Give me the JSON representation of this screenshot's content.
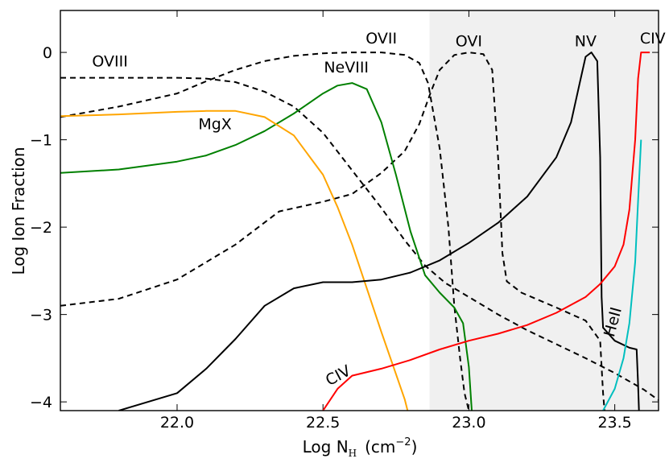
{
  "chart_data": {
    "type": "line",
    "title": "",
    "xlabel": "Log N",
    "xlabel_subscript": "H",
    "xlabel_units": "(cm",
    "xlabel_units_exp": "−2",
    "xlabel_units_close": ")",
    "ylabel": "Log Ion Fraction",
    "xlim": [
      21.6,
      23.65
    ],
    "ylim": [
      -4.1,
      0.48
    ],
    "xticks": [
      22.0,
      22.5,
      23.0,
      23.5
    ],
    "xtick_labels": [
      "22.0",
      "22.5",
      "23.0",
      "23.5"
    ],
    "yticks": [
      0,
      -1,
      -2,
      -3,
      -4
    ],
    "ytick_labels": [
      "0",
      "−1",
      "−2",
      "−3",
      "−4"
    ],
    "shaded_region": {
      "x_start": 22.865,
      "x_end": 23.65,
      "color": "#f0f0f0"
    },
    "series": [
      {
        "name": "OVIII",
        "color": "#000000",
        "dash": true,
        "label": {
          "text": "OVIII",
          "x": 21.77,
          "y": -0.16
        },
        "points": [
          [
            21.6,
            -0.29
          ],
          [
            21.8,
            -0.29
          ],
          [
            22.0,
            -0.29
          ],
          [
            22.1,
            -0.3
          ],
          [
            22.2,
            -0.34
          ],
          [
            22.3,
            -0.45
          ],
          [
            22.4,
            -0.62
          ],
          [
            22.5,
            -0.92
          ],
          [
            22.6,
            -1.35
          ],
          [
            22.7,
            -1.78
          ],
          [
            22.78,
            -2.15
          ],
          [
            22.85,
            -2.44
          ],
          [
            22.92,
            -2.64
          ],
          [
            23.0,
            -2.8
          ],
          [
            23.1,
            -3.0
          ],
          [
            23.2,
            -3.18
          ],
          [
            23.3,
            -3.34
          ],
          [
            23.4,
            -3.5
          ],
          [
            23.5,
            -3.67
          ],
          [
            23.6,
            -3.86
          ],
          [
            23.65,
            -3.98
          ]
        ]
      },
      {
        "name": "OVII",
        "color": "#000000",
        "dash": true,
        "label": {
          "text": "OVII",
          "x": 22.7,
          "y": 0.1
        },
        "points": [
          [
            21.6,
            -0.74
          ],
          [
            21.8,
            -0.62
          ],
          [
            22.0,
            -0.47
          ],
          [
            22.1,
            -0.33
          ],
          [
            22.2,
            -0.2
          ],
          [
            22.3,
            -0.1
          ],
          [
            22.4,
            -0.04
          ],
          [
            22.5,
            -0.01
          ],
          [
            22.6,
            0.0
          ],
          [
            22.7,
            0.0
          ],
          [
            22.78,
            -0.03
          ],
          [
            22.83,
            -0.12
          ],
          [
            22.86,
            -0.35
          ],
          [
            22.9,
            -1.1
          ],
          [
            22.93,
            -2.0
          ],
          [
            22.95,
            -2.9
          ],
          [
            22.97,
            -3.5
          ],
          [
            22.985,
            -3.9
          ],
          [
            23.0,
            -4.1
          ]
        ]
      },
      {
        "name": "OVI",
        "color": "#000000",
        "dash": true,
        "label": {
          "text": "OVI",
          "x": 23.0,
          "y": 0.07
        },
        "points": [
          [
            21.6,
            -2.9
          ],
          [
            21.8,
            -2.82
          ],
          [
            22.0,
            -2.6
          ],
          [
            22.2,
            -2.2
          ],
          [
            22.35,
            -1.82
          ],
          [
            22.5,
            -1.71
          ],
          [
            22.6,
            -1.62
          ],
          [
            22.7,
            -1.38
          ],
          [
            22.78,
            -1.13
          ],
          [
            22.83,
            -0.82
          ],
          [
            22.87,
            -0.45
          ],
          [
            22.9,
            -0.2
          ],
          [
            22.95,
            -0.03
          ],
          [
            23.0,
            0.0
          ],
          [
            23.05,
            -0.02
          ],
          [
            23.08,
            -0.2
          ],
          [
            23.1,
            -1.2
          ],
          [
            23.115,
            -2.3
          ],
          [
            23.13,
            -2.62
          ],
          [
            23.18,
            -2.75
          ],
          [
            23.3,
            -2.92
          ],
          [
            23.4,
            -3.07
          ],
          [
            23.45,
            -3.3
          ],
          [
            23.46,
            -3.9
          ],
          [
            23.465,
            -4.1
          ]
        ]
      },
      {
        "name": "NeVIII",
        "color": "#008000",
        "dash": false,
        "label": {
          "text": "NeVIII",
          "x": 22.58,
          "y": -0.23
        },
        "points": [
          [
            21.6,
            -1.38
          ],
          [
            21.8,
            -1.34
          ],
          [
            22.0,
            -1.25
          ],
          [
            22.1,
            -1.18
          ],
          [
            22.2,
            -1.06
          ],
          [
            22.3,
            -0.9
          ],
          [
            22.4,
            -0.7
          ],
          [
            22.5,
            -0.47
          ],
          [
            22.55,
            -0.38
          ],
          [
            22.6,
            -0.35
          ],
          [
            22.65,
            -0.42
          ],
          [
            22.7,
            -0.8
          ],
          [
            22.75,
            -1.4
          ],
          [
            22.8,
            -2.05
          ],
          [
            22.85,
            -2.55
          ],
          [
            22.9,
            -2.75
          ],
          [
            22.95,
            -2.92
          ],
          [
            22.98,
            -3.1
          ],
          [
            23.0,
            -3.6
          ],
          [
            23.01,
            -4.1
          ]
        ]
      },
      {
        "name": "MgX",
        "color": "#FFA500",
        "dash": false,
        "label": {
          "text": "MgX",
          "x": 22.13,
          "y": -0.88
        },
        "points": [
          [
            21.6,
            -0.73
          ],
          [
            21.8,
            -0.71
          ],
          [
            22.0,
            -0.68
          ],
          [
            22.1,
            -0.67
          ],
          [
            22.2,
            -0.67
          ],
          [
            22.3,
            -0.74
          ],
          [
            22.4,
            -0.95
          ],
          [
            22.5,
            -1.4
          ],
          [
            22.55,
            -1.77
          ],
          [
            22.6,
            -2.2
          ],
          [
            22.65,
            -2.7
          ],
          [
            22.7,
            -3.2
          ],
          [
            22.75,
            -3.68
          ],
          [
            22.78,
            -3.97
          ],
          [
            22.79,
            -4.1
          ]
        ]
      },
      {
        "name": "NV",
        "color": "#000000",
        "dash": false,
        "label": {
          "text": "NV",
          "x": 23.4,
          "y": 0.07
        },
        "points": [
          [
            21.8,
            -4.1
          ],
          [
            22.0,
            -3.9
          ],
          [
            22.1,
            -3.62
          ],
          [
            22.2,
            -3.28
          ],
          [
            22.3,
            -2.9
          ],
          [
            22.4,
            -2.7
          ],
          [
            22.5,
            -2.63
          ],
          [
            22.6,
            -2.63
          ],
          [
            22.7,
            -2.6
          ],
          [
            22.8,
            -2.52
          ],
          [
            22.9,
            -2.38
          ],
          [
            23.0,
            -2.18
          ],
          [
            23.1,
            -1.95
          ],
          [
            23.2,
            -1.65
          ],
          [
            23.3,
            -1.2
          ],
          [
            23.35,
            -0.8
          ],
          [
            23.38,
            -0.35
          ],
          [
            23.4,
            -0.05
          ],
          [
            23.42,
            0.0
          ],
          [
            23.44,
            -0.1
          ],
          [
            23.45,
            -1.2
          ],
          [
            23.455,
            -2.8
          ],
          [
            23.46,
            -3.15
          ],
          [
            23.5,
            -3.3
          ],
          [
            23.55,
            -3.38
          ],
          [
            23.575,
            -3.4
          ],
          [
            23.58,
            -3.8
          ],
          [
            23.583,
            -4.1
          ]
        ]
      },
      {
        "name": "CIV",
        "color": "#ff0000",
        "dash": false,
        "label": {
          "text": "CIV",
          "x": 22.56,
          "y": -3.75
        },
        "label2": {
          "text": "CIV",
          "x": 23.63,
          "y": 0.1
        },
        "points": [
          [
            22.5,
            -4.1
          ],
          [
            22.55,
            -3.85
          ],
          [
            22.6,
            -3.7
          ],
          [
            22.7,
            -3.62
          ],
          [
            22.8,
            -3.52
          ],
          [
            22.9,
            -3.4
          ],
          [
            23.0,
            -3.3
          ],
          [
            23.1,
            -3.22
          ],
          [
            23.2,
            -3.12
          ],
          [
            23.3,
            -2.98
          ],
          [
            23.4,
            -2.8
          ],
          [
            23.45,
            -2.65
          ],
          [
            23.5,
            -2.45
          ],
          [
            23.53,
            -2.2
          ],
          [
            23.55,
            -1.8
          ],
          [
            23.57,
            -1.0
          ],
          [
            23.58,
            -0.3
          ],
          [
            23.59,
            0.0
          ],
          [
            23.62,
            0.0
          ]
        ]
      },
      {
        "name": "HeII",
        "color": "#00BFBF",
        "dash": false,
        "label": {
          "text": "HeII",
          "x": 23.51,
          "y": -3.1
        },
        "points": [
          [
            23.46,
            -4.1
          ],
          [
            23.5,
            -3.85
          ],
          [
            23.53,
            -3.5
          ],
          [
            23.55,
            -3.1
          ],
          [
            23.57,
            -2.4
          ],
          [
            23.58,
            -1.7
          ],
          [
            23.59,
            -1.0
          ]
        ]
      }
    ]
  }
}
